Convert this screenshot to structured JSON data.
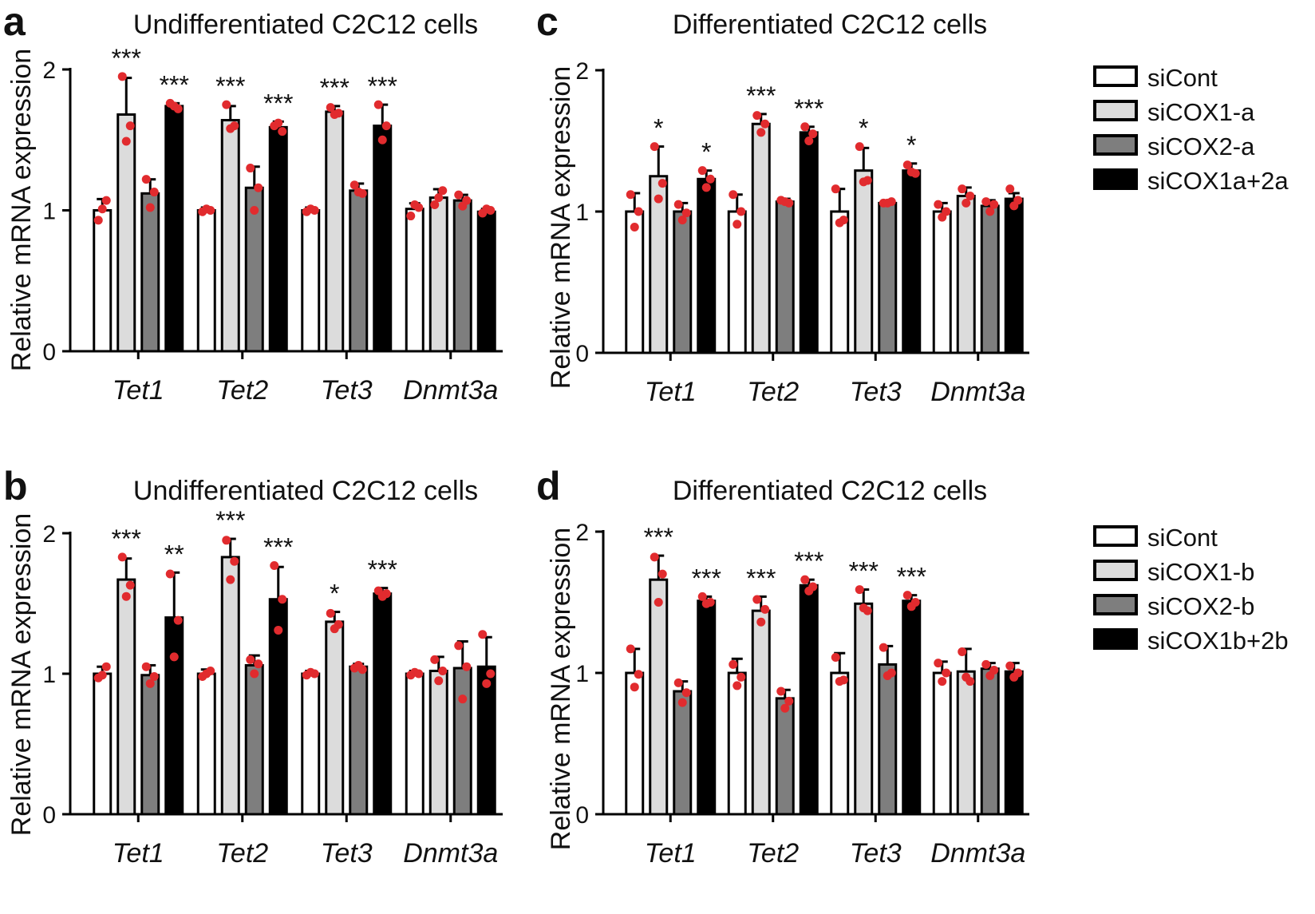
{
  "chart_data": [
    {
      "panel": "a",
      "type": "bar",
      "title": "Undifferentiated C2C12 cells",
      "ylabel": "Relative mRNA expression",
      "xlabel": "",
      "ylim": [
        0,
        2
      ],
      "yticks": [
        0,
        1,
        2
      ],
      "categories": [
        "Tet1",
        "Tet2",
        "Tet3",
        "Dnmt3a"
      ],
      "series": [
        {
          "name": "siCont",
          "color": "#ffffff",
          "values": [
            1.0,
            1.0,
            1.0,
            1.01
          ],
          "errors": [
            0.08,
            0.02,
            0.02,
            0.04
          ],
          "points": [
            [
              0.93,
              1.07,
              1.01
            ],
            [
              0.99,
              1.0,
              1.01
            ],
            [
              0.99,
              1.0,
              1.01
            ],
            [
              0.96,
              1.02,
              1.04
            ]
          ]
        },
        {
          "name": "siCOX1-a",
          "color": "#dcdcdc",
          "values": [
            1.68,
            1.64,
            1.7,
            1.09
          ],
          "errors": [
            0.26,
            0.1,
            0.04,
            0.06
          ],
          "points": [
            [
              1.95,
              1.6,
              1.49
            ],
            [
              1.75,
              1.6,
              1.58
            ],
            [
              1.73,
              1.69,
              1.68
            ],
            [
              1.04,
              1.14,
              1.09
            ]
          ]
        },
        {
          "name": "siCOX2-a",
          "color": "#7e7e7e",
          "values": [
            1.12,
            1.16,
            1.14,
            1.07
          ],
          "errors": [
            0.1,
            0.15,
            0.05,
            0.04
          ],
          "points": [
            [
              1.22,
              1.13,
              1.02
            ],
            [
              1.3,
              1.16,
              1.0
            ],
            [
              1.18,
              1.12,
              1.13
            ],
            [
              1.11,
              1.07,
              1.03
            ]
          ]
        },
        {
          "name": "siCOX1a+2a",
          "color": "#000000",
          "values": [
            1.74,
            1.59,
            1.6,
            0.99
          ],
          "errors": [
            0.02,
            0.04,
            0.15,
            0.02
          ],
          "points": [
            [
              1.76,
              1.72,
              1.74
            ],
            [
              1.6,
              1.56,
              1.62
            ],
            [
              1.75,
              1.6,
              1.5
            ],
            [
              0.98,
              1.0,
              1.01
            ]
          ]
        }
      ],
      "annotations": [
        {
          "category": "Tet1",
          "series": "siCOX1-a",
          "text": "***"
        },
        {
          "category": "Tet1",
          "series": "siCOX1a+2a",
          "text": "***"
        },
        {
          "category": "Tet2",
          "series": "siCOX1-a",
          "text": "***"
        },
        {
          "category": "Tet2",
          "series": "siCOX1a+2a",
          "text": "***"
        },
        {
          "category": "Tet3",
          "series": "siCOX1-a",
          "text": "***"
        },
        {
          "category": "Tet3",
          "series": "siCOX1a+2a",
          "text": "***"
        }
      ]
    },
    {
      "panel": "b",
      "type": "bar",
      "title": "Undifferentiated C2C12 cells",
      "ylabel": "Relative mRNA expression",
      "xlabel": "",
      "ylim": [
        0,
        2
      ],
      "yticks": [
        0,
        1,
        2
      ],
      "categories": [
        "Tet1",
        "Tet2",
        "Tet3",
        "Dnmt3a"
      ],
      "series": [
        {
          "name": "siCont",
          "color": "#ffffff",
          "values": [
            1.0,
            1.0,
            1.0,
            1.0
          ],
          "errors": [
            0.05,
            0.03,
            0.02,
            0.02
          ],
          "points": [
            [
              0.97,
              1.05,
              0.99
            ],
            [
              0.98,
              1.02,
              1.0
            ],
            [
              0.99,
              1.0,
              1.01
            ],
            [
              0.99,
              1.0,
              1.01
            ]
          ]
        },
        {
          "name": "siCOX1-b",
          "color": "#dcdcdc",
          "values": [
            1.67,
            1.83,
            1.37,
            1.02
          ],
          "errors": [
            0.15,
            0.13,
            0.07,
            0.1
          ],
          "points": [
            [
              1.83,
              1.63,
              1.55
            ],
            [
              1.95,
              1.8,
              1.67
            ],
            [
              1.43,
              1.35,
              1.32
            ],
            [
              1.1,
              1.02,
              0.95
            ]
          ]
        },
        {
          "name": "siCOX2-b",
          "color": "#7e7e7e",
          "values": [
            0.99,
            1.06,
            1.05,
            1.04
          ],
          "errors": [
            0.07,
            0.07,
            0.02,
            0.19
          ],
          "points": [
            [
              1.05,
              0.98,
              0.93
            ],
            [
              1.1,
              1.07,
              1.0
            ],
            [
              1.04,
              1.03,
              1.06
            ],
            [
              1.2,
              1.05,
              0.82
            ]
          ]
        },
        {
          "name": "siCOX1b+2b",
          "color": "#000000",
          "values": [
            1.4,
            1.53,
            1.57,
            1.05
          ],
          "errors": [
            0.32,
            0.23,
            0.04,
            0.21
          ],
          "points": [
            [
              1.71,
              1.38,
              1.12
            ],
            [
              1.77,
              1.53,
              1.31
            ],
            [
              1.59,
              1.57,
              1.55
            ],
            [
              1.28,
              1.0,
              0.93
            ]
          ]
        }
      ],
      "annotations": [
        {
          "category": "Tet1",
          "series": "siCOX1-b",
          "text": "***"
        },
        {
          "category": "Tet1",
          "series": "siCOX1b+2b",
          "text": "**"
        },
        {
          "category": "Tet2",
          "series": "siCOX1-b",
          "text": "***"
        },
        {
          "category": "Tet2",
          "series": "siCOX1b+2b",
          "text": "***"
        },
        {
          "category": "Tet3",
          "series": "siCOX1-b",
          "text": "*"
        },
        {
          "category": "Tet3",
          "series": "siCOX1b+2b",
          "text": "***"
        }
      ]
    },
    {
      "panel": "c",
      "type": "bar",
      "title": "Differentiated C2C12 cells",
      "ylabel": "Relative mRNA expression",
      "xlabel": "",
      "ylim": [
        0,
        2
      ],
      "yticks": [
        0,
        1,
        2
      ],
      "categories": [
        "Tet1",
        "Tet2",
        "Tet3",
        "Dnmt3a"
      ],
      "series": [
        {
          "name": "siCont",
          "color": "#ffffff",
          "values": [
            1.0,
            1.0,
            1.0,
            1.0
          ],
          "errors": [
            0.13,
            0.12,
            0.16,
            0.06
          ],
          "points": [
            [
              1.12,
              1.0,
              0.89
            ],
            [
              1.12,
              1.0,
              0.91
            ],
            [
              1.16,
              0.94,
              0.92
            ],
            [
              1.05,
              1.0,
              0.96
            ]
          ]
        },
        {
          "name": "siCOX1-a",
          "color": "#dcdcdc",
          "values": [
            1.25,
            1.62,
            1.29,
            1.11
          ],
          "errors": [
            0.21,
            0.07,
            0.16,
            0.06
          ],
          "points": [
            [
              1.46,
              1.2,
              1.09
            ],
            [
              1.68,
              1.62,
              1.56
            ],
            [
              1.46,
              1.22,
              1.21
            ],
            [
              1.16,
              1.11,
              1.06
            ]
          ]
        },
        {
          "name": "siCOX2-a",
          "color": "#7e7e7e",
          "values": [
            1.0,
            1.07,
            1.06,
            1.04
          ],
          "errors": [
            0.06,
            0.02,
            0.01,
            0.04
          ],
          "points": [
            [
              1.05,
              0.99,
              0.94
            ],
            [
              1.08,
              1.06,
              1.07
            ],
            [
              1.06,
              1.07,
              1.06
            ],
            [
              1.07,
              1.05,
              1.0
            ]
          ]
        },
        {
          "name": "siCOX1a+2a",
          "color": "#000000",
          "values": [
            1.23,
            1.56,
            1.29,
            1.09
          ],
          "errors": [
            0.06,
            0.04,
            0.05,
            0.04
          ],
          "points": [
            [
              1.29,
              1.23,
              1.17
            ],
            [
              1.6,
              1.55,
              1.5
            ],
            [
              1.33,
              1.27,
              1.28
            ],
            [
              1.16,
              1.08,
              1.04
            ]
          ]
        }
      ],
      "annotations": [
        {
          "category": "Tet1",
          "series": "siCOX1-a",
          "text": "*"
        },
        {
          "category": "Tet1",
          "series": "siCOX1a+2a",
          "text": "*"
        },
        {
          "category": "Tet2",
          "series": "siCOX1-a",
          "text": "***"
        },
        {
          "category": "Tet2",
          "series": "siCOX1a+2a",
          "text": "***"
        },
        {
          "category": "Tet3",
          "series": "siCOX1-a",
          "text": "*"
        },
        {
          "category": "Tet3",
          "series": "siCOX1a+2a",
          "text": "*"
        }
      ]
    },
    {
      "panel": "d",
      "type": "bar",
      "title": "Differentiated C2C12 cells",
      "ylabel": "Relative mRNA expression",
      "xlabel": "",
      "ylim": [
        0,
        2
      ],
      "yticks": [
        0,
        1,
        2
      ],
      "categories": [
        "Tet1",
        "Tet2",
        "Tet3",
        "Dnmt3a"
      ],
      "series": [
        {
          "name": "siCont",
          "color": "#ffffff",
          "values": [
            1.0,
            1.0,
            1.0,
            1.0
          ],
          "errors": [
            0.17,
            0.1,
            0.14,
            0.08
          ],
          "points": [
            [
              1.17,
              0.99,
              0.9
            ],
            [
              1.06,
              0.97,
              0.91
            ],
            [
              1.11,
              0.95,
              0.94
            ],
            [
              1.07,
              1.0,
              0.94
            ]
          ]
        },
        {
          "name": "siCOX1-b",
          "color": "#dcdcdc",
          "values": [
            1.66,
            1.44,
            1.49,
            1.01
          ],
          "errors": [
            0.17,
            0.1,
            0.1,
            0.16
          ],
          "points": [
            [
              1.82,
              1.7,
              1.5
            ],
            [
              1.52,
              1.45,
              1.36
            ],
            [
              1.59,
              1.44,
              1.46
            ],
            [
              1.15,
              0.94,
              0.97
            ]
          ]
        },
        {
          "name": "siCOX2-b",
          "color": "#7e7e7e",
          "values": [
            0.87,
            0.82,
            1.06,
            1.03
          ],
          "errors": [
            0.07,
            0.06,
            0.13,
            0.04
          ],
          "points": [
            [
              0.93,
              0.86,
              0.79
            ],
            [
              0.87,
              0.8,
              0.75
            ],
            [
              1.18,
              1.0,
              0.98
            ],
            [
              1.06,
              1.02,
              0.98
            ]
          ]
        },
        {
          "name": "siCOX1b+2b",
          "color": "#000000",
          "values": [
            1.51,
            1.62,
            1.51,
            1.01
          ],
          "errors": [
            0.03,
            0.04,
            0.04,
            0.06
          ],
          "points": [
            [
              1.54,
              1.5,
              1.49
            ],
            [
              1.66,
              1.61,
              1.58
            ],
            [
              1.55,
              1.5,
              1.47
            ],
            [
              1.05,
              1.0,
              0.97
            ]
          ]
        }
      ],
      "annotations": [
        {
          "category": "Tet1",
          "series": "siCOX1-b",
          "text": "***"
        },
        {
          "category": "Tet1",
          "series": "siCOX1b+2b",
          "text": "***"
        },
        {
          "category": "Tet2",
          "series": "siCOX1-b",
          "text": "***"
        },
        {
          "category": "Tet2",
          "series": "siCOX1b+2b",
          "text": "***"
        },
        {
          "category": "Tet3",
          "series": "siCOX1-b",
          "text": "***"
        },
        {
          "category": "Tet3",
          "series": "siCOX1b+2b",
          "text": "***"
        }
      ]
    }
  ],
  "colors": {
    "bar_outline": "#000000",
    "point": "#e12b2e",
    "axis": "#000000"
  }
}
